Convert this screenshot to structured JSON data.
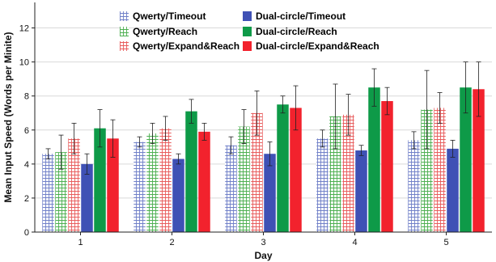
{
  "chart_data": {
    "type": "bar",
    "xlabel": "Day",
    "ylabel": "Mean Input Speed (Words per Minite)",
    "categories": [
      "1",
      "2",
      "3",
      "4",
      "5"
    ],
    "ylim": [
      0,
      13.5
    ],
    "yticks": [
      0,
      2,
      4,
      6,
      8,
      10,
      12
    ],
    "grid": "horizontal",
    "legend_position": "top-left",
    "series": [
      {
        "name": "Qwerty/Timeout",
        "color": "#7080c8",
        "pattern": "grid",
        "values": [
          4.6,
          5.3,
          5.1,
          5.5,
          5.4
        ],
        "err": [
          0.3,
          0.3,
          0.5,
          0.5,
          0.5
        ]
      },
      {
        "name": "Qwerty/Reach",
        "color": "#4caf50",
        "pattern": "grid",
        "values": [
          4.7,
          5.8,
          6.2,
          6.8,
          7.2
        ],
        "err": [
          1.0,
          0.6,
          1.0,
          1.9,
          2.3
        ]
      },
      {
        "name": "Qwerty/Expand&Reach",
        "color": "#e85c5c",
        "pattern": "grid",
        "values": [
          5.5,
          6.1,
          7.0,
          6.9,
          7.3
        ],
        "err": [
          0.9,
          0.7,
          1.3,
          1.2,
          0.9
        ]
      },
      {
        "name": "Dual-circle/Timeout",
        "color": "#3f51b5",
        "pattern": "solid",
        "values": [
          4.0,
          4.3,
          4.6,
          4.8,
          4.9
        ],
        "err": [
          0.6,
          0.3,
          0.7,
          0.3,
          0.5
        ]
      },
      {
        "name": "Dual-circle/Reach",
        "color": "#0e9a48",
        "pattern": "solid",
        "values": [
          6.1,
          7.1,
          7.5,
          8.5,
          8.5
        ],
        "err": [
          1.1,
          0.7,
          0.5,
          1.1,
          1.5
        ]
      },
      {
        "name": "Dual-circle/Expand&Reach",
        "color": "#f2222d",
        "pattern": "solid",
        "values": [
          5.5,
          5.9,
          7.3,
          7.7,
          8.4
        ],
        "err": [
          1.1,
          0.5,
          1.3,
          0.8,
          1.6
        ]
      }
    ]
  }
}
